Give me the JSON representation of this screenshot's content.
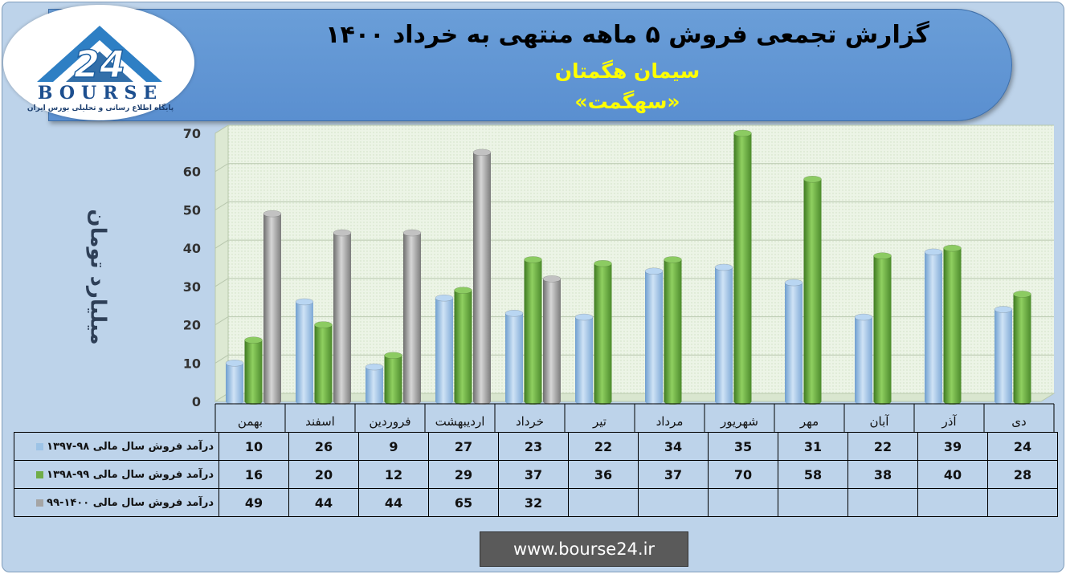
{
  "header": {
    "title": "گزارش تجمعی فروش ۵ ماهه منتهی به خرداد ۱۴۰۰",
    "company": "سیمان هگمتان",
    "symbol": "«سهگمت»"
  },
  "logo": {
    "mark": "24",
    "name": "BOURSE",
    "tagline": "پایگاه اطلاع رسانی و تحلیلی بورس ایران"
  },
  "footer": {
    "url": "www.bourse24.ir"
  },
  "colors": {
    "series1": "#9dc3e6",
    "series2": "#70ad47",
    "series3": "#a5a5a5",
    "header": "#5b9bd5",
    "background": "#bdd3ea"
  },
  "chart_data": {
    "type": "bar",
    "ylabel": "میلیارد تومان",
    "ylim": [
      0,
      70
    ],
    "yticks": [
      0,
      10,
      20,
      30,
      40,
      50,
      60,
      70
    ],
    "grid": true,
    "categories": [
      "بهمن",
      "اسفند",
      "فروردین",
      "اردیبهشت",
      "خرداد",
      "تیر",
      "مرداد",
      "شهریور",
      "مهر",
      "آبان",
      "آذر",
      "دی"
    ],
    "series": [
      {
        "name": "درآمد فروش سال مالی ۹۸-۱۳۹۷",
        "color": "#9dc3e6",
        "values": [
          10,
          26,
          9,
          27,
          23,
          22,
          34,
          35,
          31,
          22,
          39,
          24
        ]
      },
      {
        "name": "درآمد فروش سال مالی ۹۹-۱۳۹۸",
        "color": "#70ad47",
        "values": [
          16,
          20,
          12,
          29,
          37,
          36,
          37,
          70,
          58,
          38,
          40,
          28
        ]
      },
      {
        "name": "درآمد فروش سال مالی ۱۴۰۰-۹۹",
        "color": "#a5a5a5",
        "values": [
          49,
          44,
          44,
          65,
          32,
          null,
          null,
          null,
          null,
          null,
          null,
          null
        ]
      }
    ]
  }
}
